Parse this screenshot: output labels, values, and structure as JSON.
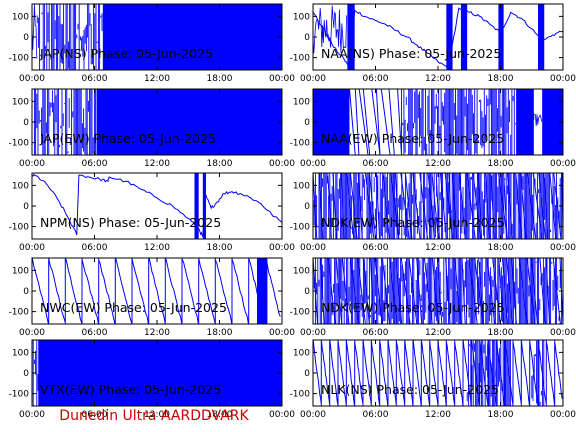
{
  "footer": {
    "text": "Dunedin Ultra AARDDVARK",
    "color": "#cc0000"
  },
  "colors": {
    "trace": "#0000ff",
    "axes": "#000000",
    "background": "#ffffff"
  },
  "chart_data": [
    {
      "type": "line",
      "title": "JAP(NS) Phase: 05-Jun-2025",
      "xticks": [
        "00:00",
        "06:00",
        "12:00",
        "18:00",
        "00:00"
      ],
      "xlim": [
        0,
        24
      ],
      "yticks": [
        100,
        0,
        -100
      ],
      "ylim": [
        -160,
        160
      ],
      "grid": false,
      "pattern": "solid-band",
      "segments": [
        {
          "from": 0,
          "to": 0.5,
          "kind": "noise",
          "lo": -160,
          "hi": 160
        },
        {
          "from": 0.5,
          "to": 6.8,
          "kind": "bars",
          "lo": -160,
          "hi": 160
        },
        {
          "from": 6.8,
          "to": 24,
          "kind": "solid",
          "lo": -160,
          "hi": 160
        }
      ]
    },
    {
      "type": "line",
      "title": "NAA(NS) Phase: 05-Jun-2025",
      "xticks": [
        "00:00",
        "06:00",
        "12:00",
        "18:00",
        "00:00"
      ],
      "xlim": [
        0,
        24
      ],
      "yticks": [
        100,
        0,
        -100
      ],
      "ylim": [
        -160,
        160
      ],
      "grid": false,
      "pattern": "slow-wave-with-bands",
      "points": [
        [
          0,
          120
        ],
        [
          1,
          40
        ],
        [
          2,
          -50
        ],
        [
          3,
          -110
        ],
        [
          3.6,
          -150
        ],
        [
          4,
          130
        ],
        [
          5,
          100
        ],
        [
          6,
          80
        ],
        [
          7,
          60
        ],
        [
          8,
          30
        ],
        [
          9,
          0
        ],
        [
          10,
          -40
        ],
        [
          11,
          -80
        ],
        [
          12,
          -120
        ],
        [
          13,
          -150
        ],
        [
          14,
          140
        ],
        [
          15,
          120
        ],
        [
          16,
          100
        ],
        [
          17,
          60
        ],
        [
          18,
          20
        ],
        [
          19,
          120
        ],
        [
          20,
          90
        ],
        [
          21,
          40
        ],
        [
          22,
          -20
        ],
        [
          23,
          10
        ],
        [
          24,
          30
        ]
      ],
      "segments": [
        {
          "from": 3.3,
          "to": 4.0,
          "kind": "solid",
          "lo": -160,
          "hi": 160
        },
        {
          "from": 12.8,
          "to": 13.4,
          "kind": "solid",
          "lo": -160,
          "hi": 160
        },
        {
          "from": 14.2,
          "to": 14.8,
          "kind": "solid",
          "lo": -160,
          "hi": 160
        },
        {
          "from": 17.8,
          "to": 18.3,
          "kind": "solid",
          "lo": -160,
          "hi": 160
        },
        {
          "from": 21.6,
          "to": 22.2,
          "kind": "solid",
          "lo": -160,
          "hi": 160
        },
        {
          "from": 0,
          "to": 3.3,
          "kind": "noise",
          "lo": -80,
          "hi": 160
        }
      ]
    },
    {
      "type": "line",
      "title": "JAP(EW) Phase: 05-Jun-2025",
      "xticks": [
        "00:00",
        "06:00",
        "12:00",
        "18:00",
        "00:00"
      ],
      "xlim": [
        0,
        24
      ],
      "yticks": [
        100,
        0,
        -100
      ],
      "ylim": [
        -160,
        160
      ],
      "grid": false,
      "pattern": "solid-band",
      "segments": [
        {
          "from": 0,
          "to": 6.2,
          "kind": "bars",
          "lo": -160,
          "hi": 160
        },
        {
          "from": 6.2,
          "to": 24,
          "kind": "solid",
          "lo": -160,
          "hi": 160
        }
      ]
    },
    {
      "type": "line",
      "title": "NAA(EW) Phase: 05-Jun-2025",
      "xticks": [
        "00:00",
        "06:00",
        "12:00",
        "18:00",
        "00:00"
      ],
      "xlim": [
        0,
        24
      ],
      "yticks": [
        100,
        0,
        -100
      ],
      "ylim": [
        -160,
        160
      ],
      "grid": false,
      "pattern": "dense-noise-with-ramps",
      "segments": [
        {
          "from": 0,
          "to": 3.5,
          "kind": "solid",
          "lo": -160,
          "hi": 160
        },
        {
          "from": 3.5,
          "to": 8.5,
          "kind": "ramps",
          "lo": -160,
          "hi": 160
        },
        {
          "from": 8.5,
          "to": 19.5,
          "kind": "bars",
          "lo": -160,
          "hi": 160
        },
        {
          "from": 19.5,
          "to": 21.2,
          "kind": "solid",
          "lo": -160,
          "hi": 160
        },
        {
          "from": 21.2,
          "to": 22.0,
          "kind": "noise",
          "lo": -20,
          "hi": 40
        },
        {
          "from": 22.0,
          "to": 24,
          "kind": "solid",
          "lo": -160,
          "hi": 160
        }
      ]
    },
    {
      "type": "line",
      "title": "NPM(NS) Phase: 05-Jun-2025",
      "xticks": [
        "00:00",
        "06:00",
        "12:00",
        "18:00",
        "00:00"
      ],
      "xlim": [
        0,
        24
      ],
      "yticks": [
        100,
        0,
        -100
      ],
      "ylim": [
        -160,
        160
      ],
      "grid": false,
      "pattern": "sparse-drift",
      "points": [
        [
          0,
          150
        ],
        [
          0.6,
          140
        ],
        [
          1.5,
          100
        ],
        [
          2.5,
          30
        ],
        [
          3.5,
          -60
        ],
        [
          4.3,
          -140
        ],
        [
          4.5,
          150
        ],
        [
          5.5,
          140
        ],
        [
          6.5,
          130
        ],
        [
          7.3,
          120
        ],
        [
          7.4,
          140
        ],
        [
          9,
          120
        ],
        [
          10.5,
          80
        ],
        [
          12,
          40
        ],
        [
          13.5,
          0
        ],
        [
          15,
          -60
        ],
        [
          16,
          -110
        ],
        [
          16.4,
          -150
        ],
        [
          16.6,
          60
        ],
        [
          17.2,
          -10
        ],
        [
          17.8,
          20
        ],
        [
          18.4,
          60
        ],
        [
          19.2,
          70
        ],
        [
          20,
          60
        ],
        [
          21,
          40
        ],
        [
          22,
          10
        ],
        [
          23,
          -40
        ],
        [
          24,
          -80
        ]
      ],
      "segments": [
        {
          "from": 15.6,
          "to": 16.0,
          "kind": "solid",
          "lo": -160,
          "hi": 160
        },
        {
          "from": 16.4,
          "to": 16.7,
          "kind": "solid",
          "lo": -160,
          "hi": 160
        }
      ]
    },
    {
      "type": "line",
      "title": "NDK(EW) Phase: 05-Jun-2025",
      "xticks": [
        "00:00",
        "06:00",
        "12:00",
        "18:00",
        "00:00"
      ],
      "xlim": [
        0,
        24
      ],
      "yticks": [
        100,
        0,
        -100
      ],
      "ylim": [
        -160,
        160
      ],
      "grid": false,
      "pattern": "sawtooth-dense",
      "segments": [
        {
          "from": 0,
          "to": 24,
          "kind": "ramps",
          "lo": -160,
          "hi": 160
        },
        {
          "from": 0,
          "to": 24,
          "kind": "bars",
          "lo": -160,
          "hi": 160
        }
      ]
    },
    {
      "type": "line",
      "title": "NWC(EW) Phase: 05-Jun-2025",
      "xticks": [
        "00:00",
        "06:00",
        "12:00",
        "18:00",
        "00:00"
      ],
      "xlim": [
        0,
        24
      ],
      "yticks": [
        100,
        0,
        -100
      ],
      "ylim": [
        -160,
        160
      ],
      "grid": false,
      "pattern": "sawtooth",
      "segments": [
        {
          "from": 0,
          "to": 24,
          "kind": "sawtooth",
          "lo": -160,
          "hi": 160,
          "period": 1.6
        },
        {
          "from": 21.6,
          "to": 22.6,
          "kind": "solid",
          "lo": -160,
          "hi": 160
        }
      ]
    },
    {
      "type": "line",
      "title": "NDK(EW) Phase: 05-Jun-2025",
      "xticks": [
        "00:00",
        "06:00",
        "12:00",
        "18:00",
        "00:00"
      ],
      "xlim": [
        0,
        24
      ],
      "yticks": [
        100,
        0,
        -100
      ],
      "ylim": [
        -160,
        160
      ],
      "grid": false,
      "pattern": "sawtooth-dense",
      "segments": [
        {
          "from": 0,
          "to": 24,
          "kind": "ramps",
          "lo": -160,
          "hi": 160
        },
        {
          "from": 0,
          "to": 24,
          "kind": "bars",
          "lo": -160,
          "hi": 160
        }
      ]
    },
    {
      "type": "line",
      "title": "VTX(EW) Phase: 05-Jun-2025",
      "xticks": [
        "00:00",
        "06:00",
        "12:00",
        "18:00",
        "00:00"
      ],
      "xlim": [
        0,
        24
      ],
      "yticks": [
        100,
        0,
        -100
      ],
      "ylim": [
        -160,
        160
      ],
      "grid": false,
      "pattern": "solid-band",
      "segments": [
        {
          "from": 0,
          "to": 0.6,
          "kind": "bars",
          "lo": -160,
          "hi": 160
        },
        {
          "from": 0.6,
          "to": 24,
          "kind": "solid",
          "lo": -160,
          "hi": 160
        }
      ]
    },
    {
      "type": "line",
      "title": "NLK(NS) Phase: 05-Jun-2025",
      "xticks": [
        "00:00",
        "06:00",
        "12:00",
        "18:00",
        "00:00"
      ],
      "xlim": [
        0,
        24
      ],
      "yticks": [
        100,
        0,
        -100
      ],
      "ylim": [
        -160,
        160
      ],
      "grid": false,
      "pattern": "sawtooth-fine",
      "segments": [
        {
          "from": 0,
          "to": 24,
          "kind": "sawtooth",
          "lo": -160,
          "hi": 160,
          "period": 0.8
        },
        {
          "from": 14.8,
          "to": 19.0,
          "kind": "bars",
          "lo": -160,
          "hi": 160
        },
        {
          "from": 21.0,
          "to": 22.2,
          "kind": "bars",
          "lo": -160,
          "hi": 160
        }
      ]
    }
  ]
}
